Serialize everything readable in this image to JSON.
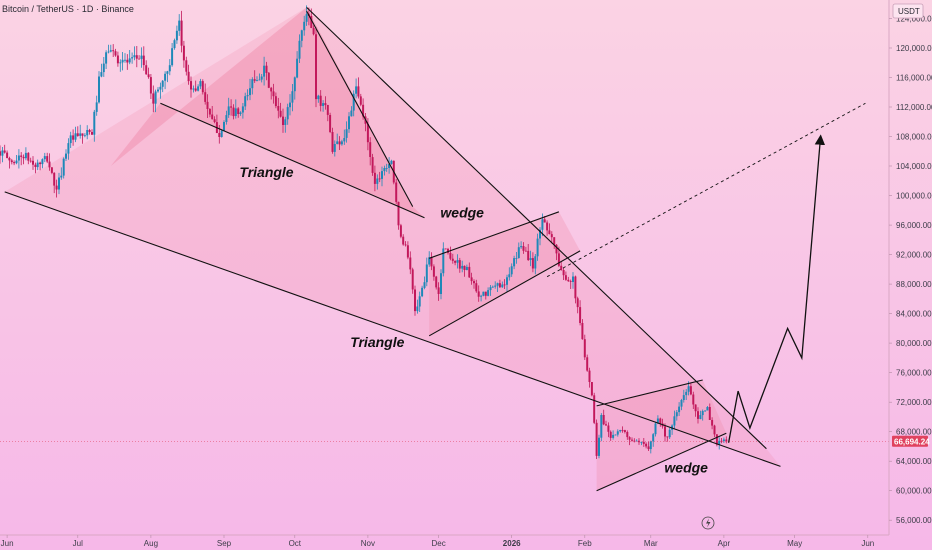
{
  "header": {
    "title": "Bitcoin / TetherUS · 1D · Binance"
  },
  "currency_label": "USDT",
  "price_tag": {
    "label": "66,694.24",
    "value": 66694.24,
    "color": "#e0425f"
  },
  "colors": {
    "bg_top": "#fbd3e4",
    "bg_bottom": "#f6b8e8",
    "up": "#1e88b8",
    "down": "#c2185b",
    "line": "#111111",
    "shade": "#f08aa9"
  },
  "chart_data": {
    "type": "candlestick",
    "title": "Bitcoin / TetherUS · 1D · Binance",
    "y_axis": {
      "unit": "USDT",
      "range": [
        54000,
        126500
      ],
      "ticks": [
        {
          "label": "56,000.00",
          "value": 56000
        },
        {
          "label": "60,000.00",
          "value": 60000
        },
        {
          "label": "64,000.00",
          "value": 64000
        },
        {
          "label": "68,000.00",
          "value": 68000
        },
        {
          "label": "72,000.00",
          "value": 72000
        },
        {
          "label": "76,000.00",
          "value": 76000
        },
        {
          "label": "80,000.00",
          "value": 80000
        },
        {
          "label": "84,000.00",
          "value": 84000
        },
        {
          "label": "88,000.00",
          "value": 88000
        },
        {
          "label": "92,000.00",
          "value": 92000
        },
        {
          "label": "96,000.00",
          "value": 96000
        },
        {
          "label": "100,000.00",
          "value": 100000
        },
        {
          "label": "104,000.00",
          "value": 104000
        },
        {
          "label": "108,000.00",
          "value": 108000
        },
        {
          "label": "112,000.00",
          "value": 112000
        },
        {
          "label": "116,000.00",
          "value": 116000
        },
        {
          "label": "120,000.00",
          "value": 120000
        },
        {
          "label": "124,000.00",
          "value": 124000
        }
      ]
    },
    "x_axis": {
      "range": [
        "2025-05-29",
        "2026-06-10"
      ],
      "ticks": [
        {
          "label": "Jun",
          "date": "2025-06-01"
        },
        {
          "label": "Jul",
          "date": "2025-07-01"
        },
        {
          "label": "Aug",
          "date": "2025-08-01"
        },
        {
          "label": "Sep",
          "date": "2025-09-01"
        },
        {
          "label": "Oct",
          "date": "2025-10-01"
        },
        {
          "label": "Nov",
          "date": "2025-11-01"
        },
        {
          "label": "Dec",
          "date": "2025-12-01"
        },
        {
          "label": "2026",
          "date": "2026-01-01",
          "bold": true
        },
        {
          "label": "Feb",
          "date": "2026-02-01"
        },
        {
          "label": "Mar",
          "date": "2026-03-01"
        },
        {
          "label": "Apr",
          "date": "2026-04-01"
        },
        {
          "label": "May",
          "date": "2026-05-01"
        },
        {
          "label": "Jun",
          "date": "2026-06-01"
        }
      ]
    },
    "price_path": [
      [
        "2025-05-29",
        106000
      ],
      [
        "2025-06-03",
        104500
      ],
      [
        "2025-06-08",
        105500
      ],
      [
        "2025-06-13",
        104000
      ],
      [
        "2025-06-18",
        105000
      ],
      [
        "2025-06-22",
        100500
      ],
      [
        "2025-06-27",
        107500
      ],
      [
        "2025-07-02",
        108000
      ],
      [
        "2025-07-07",
        108500
      ],
      [
        "2025-07-10",
        115500
      ],
      [
        "2025-07-14",
        120000
      ],
      [
        "2025-07-18",
        118500
      ],
      [
        "2025-07-23",
        118000
      ],
      [
        "2025-07-28",
        119000
      ],
      [
        "2025-08-02",
        113000
      ],
      [
        "2025-08-08",
        117000
      ],
      [
        "2025-08-13",
        123000
      ],
      [
        "2025-08-15",
        118000
      ],
      [
        "2025-08-19",
        114000
      ],
      [
        "2025-08-22",
        115500
      ],
      [
        "2025-08-26",
        110500
      ],
      [
        "2025-08-30",
        108500
      ],
      [
        "2025-09-03",
        111500
      ],
      [
        "2025-09-08",
        111000
      ],
      [
        "2025-09-13",
        115500
      ],
      [
        "2025-09-18",
        117000
      ],
      [
        "2025-09-22",
        113000
      ],
      [
        "2025-09-26",
        109500
      ],
      [
        "2025-09-30",
        114000
      ],
      [
        "2025-10-03",
        121000
      ],
      [
        "2025-10-06",
        125000
      ],
      [
        "2025-10-09",
        121500
      ],
      [
        "2025-10-10",
        113000
      ],
      [
        "2025-10-14",
        112500
      ],
      [
        "2025-10-17",
        106500
      ],
      [
        "2025-10-22",
        108000
      ],
      [
        "2025-10-27",
        114500
      ],
      [
        "2025-10-31",
        109500
      ],
      [
        "2025-11-04",
        101500
      ],
      [
        "2025-11-07",
        103500
      ],
      [
        "2025-11-11",
        105000
      ],
      [
        "2025-11-14",
        95500
      ],
      [
        "2025-11-18",
        92000
      ],
      [
        "2025-11-21",
        84500
      ],
      [
        "2025-11-23",
        86000
      ],
      [
        "2025-11-27",
        91500
      ],
      [
        "2025-12-01",
        86500
      ],
      [
        "2025-12-03",
        93000
      ],
      [
        "2025-12-08",
        91000
      ],
      [
        "2025-12-13",
        90000
      ],
      [
        "2025-12-18",
        86000
      ],
      [
        "2025-12-24",
        87500
      ],
      [
        "2025-12-30",
        88500
      ],
      [
        "2026-01-05",
        93500
      ],
      [
        "2026-01-10",
        90500
      ],
      [
        "2026-01-14",
        97000
      ],
      [
        "2026-01-18",
        94500
      ],
      [
        "2026-01-22",
        89500
      ],
      [
        "2026-01-27",
        88500
      ],
      [
        "2026-02-01",
        78500
      ],
      [
        "2026-02-04",
        73000
      ],
      [
        "2026-02-06",
        65000
      ],
      [
        "2026-02-08",
        70000
      ],
      [
        "2026-02-12",
        67500
      ],
      [
        "2026-02-17",
        68000
      ],
      [
        "2026-02-22",
        66500
      ],
      [
        "2026-02-28",
        66000
      ],
      [
        "2026-03-04",
        70000
      ],
      [
        "2026-03-08",
        67000
      ],
      [
        "2026-03-13",
        71500
      ],
      [
        "2026-03-17",
        74000
      ],
      [
        "2026-03-21",
        70000
      ],
      [
        "2026-03-25",
        71000
      ],
      [
        "2026-03-29",
        66500
      ],
      [
        "2026-04-02",
        66694.24
      ]
    ],
    "annotations": {
      "labels": [
        {
          "text": "Triangle",
          "date": "2025-09-19",
          "price": 102500
        },
        {
          "text": "wedge",
          "date": "2025-12-11",
          "price": 97000
        },
        {
          "text": "Triangle",
          "date": "2025-11-05",
          "price": 79500
        },
        {
          "text": "wedge",
          "date": "2026-03-16",
          "price": 62500
        }
      ],
      "lines": [
        {
          "from": [
            "2025-05-31",
            100500
          ],
          "to": [
            "2026-04-25",
            63300
          ],
          "style": "solid"
        },
        {
          "from": [
            "2025-10-06",
            125500
          ],
          "to": [
            "2026-04-19",
            65700
          ],
          "style": "solid"
        },
        {
          "from": [
            "2025-10-06",
            125000
          ],
          "to": [
            "2025-11-20",
            98500
          ],
          "style": "solid"
        },
        {
          "from": [
            "2025-08-05",
            112500
          ],
          "to": [
            "2025-11-25",
            97000
          ],
          "style": "solid"
        },
        {
          "from": [
            "2025-11-27",
            81000
          ],
          "to": [
            "2026-01-30",
            92500
          ],
          "style": "solid"
        },
        {
          "from": [
            "2025-11-27",
            91500
          ],
          "to": [
            "2026-01-21",
            97800
          ],
          "style": "solid"
        },
        {
          "from": [
            "2026-02-06",
            60000
          ],
          "to": [
            "2026-04-02",
            67800
          ],
          "style": "solid"
        },
        {
          "from": [
            "2026-02-06",
            71500
          ],
          "to": [
            "2026-03-23",
            75000
          ],
          "style": "solid"
        },
        {
          "from": [
            "2026-01-16",
            89000
          ],
          "to": [
            "2026-05-31",
            112500
          ],
          "style": "dashed"
        }
      ],
      "shaded_regions": [
        {
          "name": "top-triangle",
          "points": [
            [
              "2025-10-06",
              125500
            ],
            [
              "2025-07-15",
              104000
            ],
            [
              "2025-08-05",
              112500
            ],
            [
              "2025-11-25",
              97000
            ],
            [
              "2025-11-20",
              98500
            ]
          ]
        },
        {
          "name": "big-triangle",
          "points": [
            [
              "2025-10-06",
              125500
            ],
            [
              "2026-04-19",
              65700
            ],
            [
              "2026-04-25",
              63300
            ],
            [
              "2025-05-31",
              100500
            ]
          ]
        },
        {
          "name": "wedge-1",
          "points": [
            [
              "2025-11-27",
              91500
            ],
            [
              "2026-01-21",
              97800
            ],
            [
              "2026-01-30",
              92500
            ],
            [
              "2025-11-27",
              81000
            ]
          ]
        },
        {
          "name": "wedge-2",
          "points": [
            [
              "2026-02-06",
              71500
            ],
            [
              "2026-03-23",
              75000
            ],
            [
              "2026-04-02",
              67800
            ],
            [
              "2026-02-06",
              60000
            ]
          ]
        }
      ],
      "projection_path": [
        [
          "2026-04-03",
          66500
        ],
        [
          "2026-04-07",
          73500
        ],
        [
          "2026-04-12",
          68500
        ],
        [
          "2026-04-28",
          82000
        ],
        [
          "2026-05-04",
          78000
        ],
        [
          "2026-05-12",
          108000
        ]
      ]
    }
  }
}
